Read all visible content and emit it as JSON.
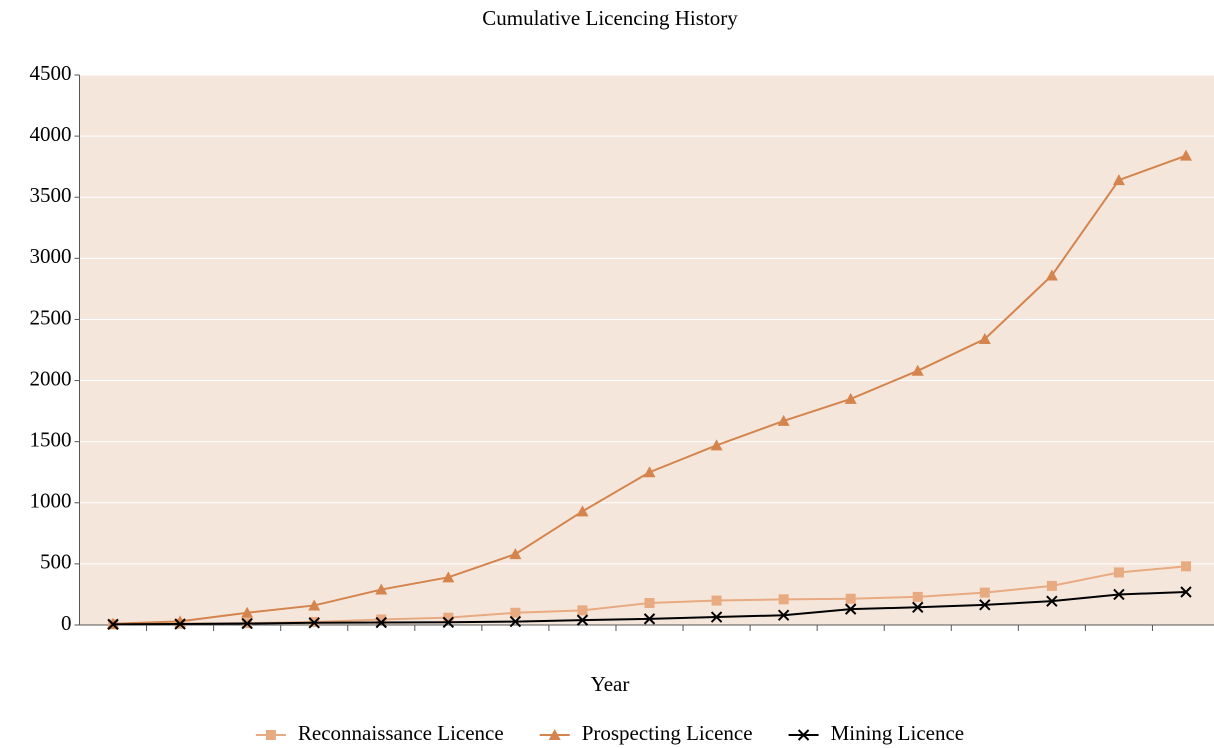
{
  "chart_data": {
    "type": "line",
    "title": "Cumulative Licencing History",
    "x_label": "Year",
    "categories": [
      null,
      null,
      null,
      null,
      null,
      null,
      null,
      null,
      null,
      null,
      null,
      null,
      null,
      null,
      null,
      null,
      null
    ],
    "series": [
      {
        "name": "Reconnaissance Licence",
        "color": "#e8aa80",
        "marker": "square",
        "values": [
          5,
          10,
          15,
          25,
          45,
          60,
          100,
          120,
          180,
          200,
          210,
          215,
          230,
          265,
          320,
          430,
          480
        ]
      },
      {
        "name": "Prospecting Licence",
        "color": "#d4844c",
        "marker": "triangle",
        "values": [
          10,
          30,
          100,
          160,
          290,
          390,
          580,
          930,
          1250,
          1470,
          1670,
          1850,
          2080,
          2340,
          2860,
          3640,
          3840
        ]
      },
      {
        "name": "Mining Licence",
        "color": "#000000",
        "marker": "x",
        "values": [
          5,
          8,
          12,
          18,
          20,
          22,
          28,
          40,
          50,
          65,
          80,
          130,
          145,
          165,
          195,
          250,
          270
        ]
      }
    ],
    "ylim": [
      0,
      4500
    ],
    "yticks": [
      0,
      500,
      1000,
      1500,
      2000,
      2500,
      3000,
      3500,
      4000,
      4500
    ],
    "grid": true,
    "legend": "bottom",
    "background": "#f5e6dc"
  }
}
